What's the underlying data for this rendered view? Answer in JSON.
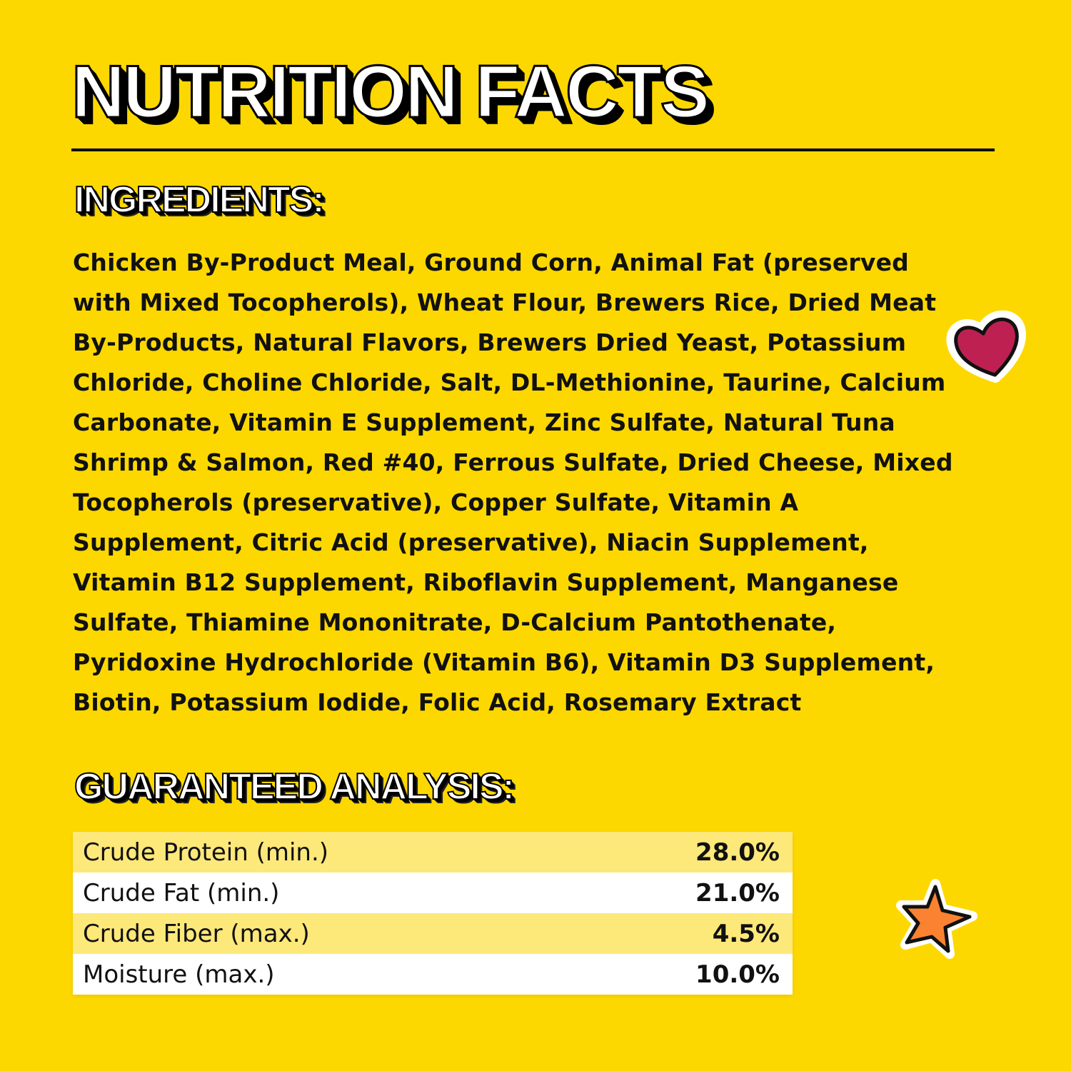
{
  "title": "NUTRITION FACTS",
  "ingredients": {
    "heading": "INGREDIENTS:",
    "lines": [
      "Chicken By-Product Meal, Ground Corn, Animal Fat (preserved",
      "with Mixed Tocopherols), Wheat Flour, Brewers Rice, Dried Meat",
      "By-Products, Natural Flavors, Brewers Dried Yeast, Potassium",
      "Chloride, Choline Chloride, Salt, DL-Methionine, Taurine, Calcium",
      "Carbonate, Vitamin E Supplement, Zinc Sulfate, Natural Tuna",
      "Shrimp & Salmon, Red #40, Ferrous Sulfate, Dried Cheese, Mixed",
      "Tocopherols (preservative), Copper Sulfate, Vitamin A",
      "Supplement, Citric Acid (preservative), Niacin Supplement,",
      "Vitamin B12 Supplement, Riboflavin Supplement, Manganese",
      "Sulfate, Thiamine Mononitrate, D-Calcium Pantothenate,",
      "Pyridoxine Hydrochloride (Vitamin B6), Vitamin D3 Supplement,",
      "Biotin, Potassium Iodide, Folic Acid, Rosemary Extract"
    ]
  },
  "analysis": {
    "heading": "GUARANTEED ANALYSIS:",
    "rows": [
      {
        "label": "Crude Protein (min.)",
        "value": "28.0%"
      },
      {
        "label": "Crude Fat (min.)",
        "value": "21.0%"
      },
      {
        "label": "Crude Fiber (max.)",
        "value": "4.5%"
      },
      {
        "label": "Moisture (max.)",
        "value": "10.0%"
      }
    ]
  },
  "colors": {
    "background": "#FDD800",
    "row_alt": "#FDE87A",
    "heart": "#BE2151",
    "star": "#FA8231"
  },
  "decorations": [
    "heart-icon",
    "star-icon"
  ]
}
